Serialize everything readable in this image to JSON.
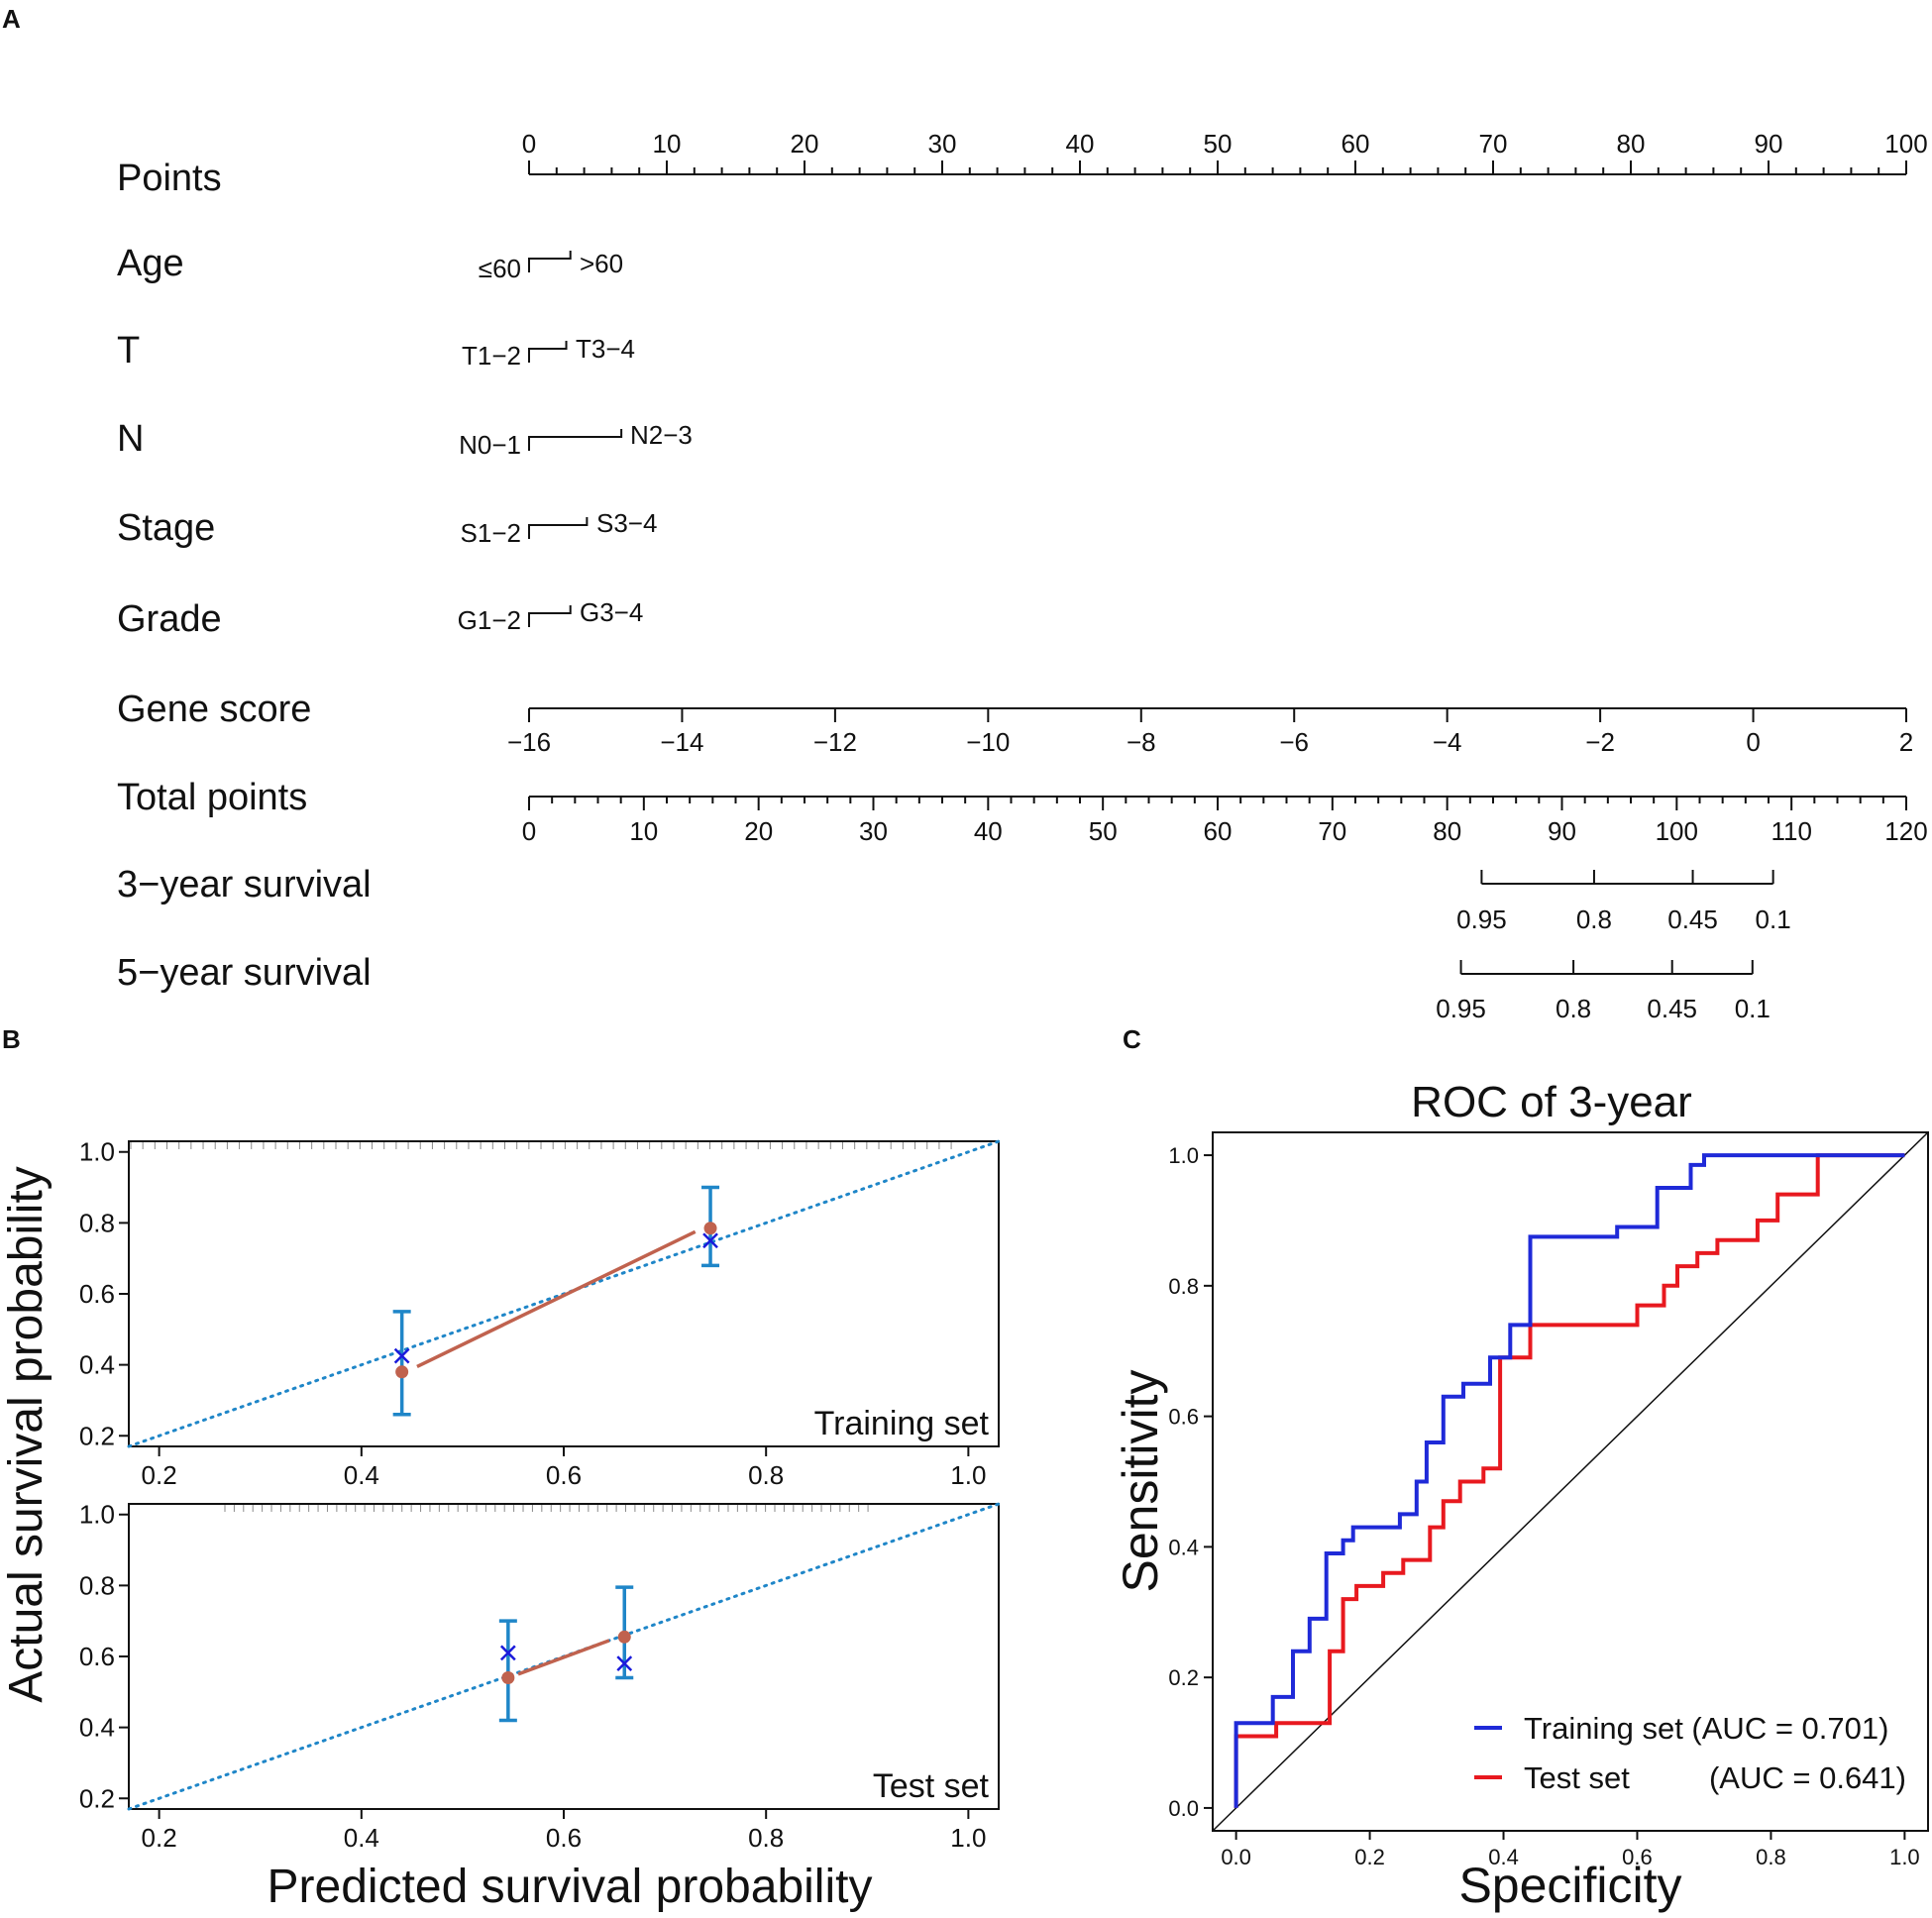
{
  "panels": {
    "a": "A",
    "b": "B",
    "c": "C"
  },
  "colors": {
    "training_roc": "#1f2ad8",
    "test_roc": "#e8191f",
    "calibration_line": "#c0624e",
    "calibration_point": "#c0624e",
    "calibration_error": "#1f86c8",
    "calibration_ideal": "#1f86c8",
    "kaplan_x": "#1a1adb",
    "axis": "#111111"
  },
  "nomogram": {
    "rows": [
      {
        "key": "points",
        "label": "Points"
      },
      {
        "key": "age",
        "label": "Age"
      },
      {
        "key": "t",
        "label": "T"
      },
      {
        "key": "n",
        "label": "N"
      },
      {
        "key": "stage",
        "label": "Stage"
      },
      {
        "key": "grade",
        "label": "Grade"
      },
      {
        "key": "gene",
        "label": "Gene score"
      },
      {
        "key": "total",
        "label": "Total points"
      },
      {
        "key": "surv3",
        "label": "3−year survival"
      },
      {
        "key": "surv5",
        "label": "5−year survival"
      }
    ],
    "points_scale": {
      "min": 0,
      "max": 100,
      "labels": [
        "0",
        "10",
        "20",
        "30",
        "40",
        "50",
        "60",
        "70",
        "80",
        "90",
        "100"
      ]
    },
    "age": {
      "low_label": "≤60",
      "high_label": ">60",
      "points": 3
    },
    "t": {
      "low_label": "T1−2",
      "high_label": "T3−4",
      "points": 2.7
    },
    "n": {
      "low_label": "N0−1",
      "high_label": "N2−3",
      "points": 6.7
    },
    "stage": {
      "low_label": "S1−2",
      "high_label": "S3−4",
      "points": 4.2
    },
    "grade": {
      "low_label": "G1−2",
      "high_label": "G3−4",
      "points": 3
    },
    "gene_score": {
      "min": -16,
      "max": 2,
      "labels": [
        "−16",
        "−14",
        "−12",
        "−10",
        "−8",
        "−6",
        "−4",
        "−2",
        "0",
        "2"
      ]
    },
    "total_points": {
      "min": 0,
      "max": 120,
      "labels": [
        "0",
        "10",
        "20",
        "30",
        "40",
        "50",
        "60",
        "70",
        "80",
        "90",
        "100",
        "110",
        "120"
      ]
    },
    "survival_3yr": {
      "ticks": [
        {
          "label": "0.95",
          "total_points": 83
        },
        {
          "label": "0.8",
          "total_points": 92.8
        },
        {
          "label": "0.45",
          "total_points": 101.4
        },
        {
          "label": "0.1",
          "total_points": 108.4
        }
      ]
    },
    "survival_5yr": {
      "ticks": [
        {
          "label": "0.95",
          "total_points": 81.2
        },
        {
          "label": "0.8",
          "total_points": 91
        },
        {
          "label": "0.45",
          "total_points": 99.6
        },
        {
          "label": "0.1",
          "total_points": 106.6
        }
      ]
    }
  },
  "chart_data": [
    {
      "id": "calibration_training",
      "type": "line",
      "panel": "B",
      "label": "Training set",
      "xlabel": "Predicted survival probability",
      "ylabel": "Actual survival probability",
      "xlim": [
        0.17,
        1.03
      ],
      "ylim": [
        0.17,
        1.03
      ],
      "x_ticks": [
        "0.2",
        "0.4",
        "0.6",
        "0.8",
        "1.0"
      ],
      "y_ticks": [
        "0.2",
        "0.4",
        "0.6",
        "0.8",
        "1.0"
      ],
      "observed": [
        {
          "x": 0.44,
          "y": 0.38,
          "lower": 0.26,
          "upper": 0.55
        },
        {
          "x": 0.745,
          "y": 0.785,
          "lower": 0.68,
          "upper": 0.9
        }
      ],
      "corrected": [
        {
          "x": 0.44,
          "y": 0.425
        },
        {
          "x": 0.745,
          "y": 0.75
        }
      ],
      "fit_line": {
        "x": [
          0.455,
          0.73
        ],
        "y": [
          0.395,
          0.775
        ]
      }
    },
    {
      "id": "calibration_test",
      "type": "line",
      "panel": "B",
      "label": "Test set",
      "xlabel": "Predicted survival probability",
      "ylabel": "Actual survival probability",
      "xlim": [
        0.17,
        1.03
      ],
      "ylim": [
        0.17,
        1.03
      ],
      "x_ticks": [
        "0.2",
        "0.4",
        "0.6",
        "0.8",
        "1.0"
      ],
      "y_ticks": [
        "0.2",
        "0.4",
        "0.6",
        "0.8",
        "1.0"
      ],
      "observed": [
        {
          "x": 0.545,
          "y": 0.54,
          "lower": 0.42,
          "upper": 0.7
        },
        {
          "x": 0.66,
          "y": 0.655,
          "lower": 0.54,
          "upper": 0.795
        }
      ],
      "corrected": [
        {
          "x": 0.545,
          "y": 0.61
        },
        {
          "x": 0.66,
          "y": 0.58
        }
      ],
      "fit_line": {
        "x": [
          0.555,
          0.645
        ],
        "y": [
          0.55,
          0.645
        ]
      }
    },
    {
      "id": "roc_3year",
      "type": "line",
      "panel": "C",
      "title": "ROC of 3-year",
      "xlabel": "Specificity",
      "ylabel": "Sensitivity",
      "xlim": [
        -0.035,
        1.035
      ],
      "ylim": [
        -0.035,
        1.035
      ],
      "x_ticks": [
        "0.0",
        "0.2",
        "0.4",
        "0.6",
        "0.8",
        "1.0"
      ],
      "y_ticks": [
        "0.0",
        "0.2",
        "0.4",
        "0.6",
        "0.8",
        "1.0"
      ],
      "series": [
        {
          "name": "Training set",
          "legend_label": "Training set (AUC = 0.701)",
          "auc": 0.701,
          "x": [
            0,
            0,
            0.055,
            0.055,
            0.085,
            0.085,
            0.11,
            0.11,
            0.135,
            0.135,
            0.16,
            0.16,
            0.175,
            0.175,
            0.19,
            0.19,
            0.245,
            0.245,
            0.27,
            0.27,
            0.285,
            0.285,
            0.31,
            0.31,
            0.34,
            0.34,
            0.38,
            0.38,
            0.41,
            0.41,
            0.44,
            0.44,
            0.57,
            0.57,
            0.63,
            0.63,
            0.68,
            0.68,
            0.7,
            0.7,
            0.73,
            0.73,
            0.88,
            1.0
          ],
          "y": [
            0,
            0.13,
            0.13,
            0.17,
            0.17,
            0.24,
            0.24,
            0.29,
            0.29,
            0.39,
            0.39,
            0.41,
            0.41,
            0.43,
            0.43,
            0.43,
            0.43,
            0.45,
            0.45,
            0.5,
            0.5,
            0.56,
            0.56,
            0.63,
            0.63,
            0.65,
            0.65,
            0.69,
            0.69,
            0.74,
            0.74,
            0.875,
            0.875,
            0.89,
            0.89,
            0.95,
            0.95,
            0.985,
            0.985,
            1.0,
            1.0,
            1.0,
            1.0,
            1.0
          ]
        },
        {
          "name": "Test set",
          "legend_label_name": "Test set",
          "legend_label_auc": "(AUC = 0.641)",
          "auc": 0.641,
          "x": [
            0,
            0,
            0.06,
            0.06,
            0.14,
            0.14,
            0.16,
            0.16,
            0.18,
            0.18,
            0.22,
            0.22,
            0.25,
            0.25,
            0.29,
            0.29,
            0.31,
            0.31,
            0.335,
            0.335,
            0.37,
            0.37,
            0.395,
            0.395,
            0.44,
            0.44,
            0.6,
            0.6,
            0.64,
            0.64,
            0.66,
            0.66,
            0.69,
            0.69,
            0.72,
            0.72,
            0.78,
            0.78,
            0.81,
            0.81,
            0.835,
            0.835,
            0.87,
            0.87,
            0.88,
            1.0
          ],
          "y": [
            0,
            0.11,
            0.11,
            0.13,
            0.13,
            0.24,
            0.24,
            0.32,
            0.32,
            0.34,
            0.34,
            0.36,
            0.36,
            0.38,
            0.38,
            0.43,
            0.43,
            0.47,
            0.47,
            0.5,
            0.5,
            0.52,
            0.52,
            0.69,
            0.69,
            0.74,
            0.74,
            0.77,
            0.77,
            0.8,
            0.8,
            0.83,
            0.83,
            0.85,
            0.85,
            0.87,
            0.87,
            0.9,
            0.9,
            0.94,
            0.94,
            0.94,
            0.94,
            1.0,
            1.0,
            1.0
          ]
        }
      ]
    }
  ]
}
